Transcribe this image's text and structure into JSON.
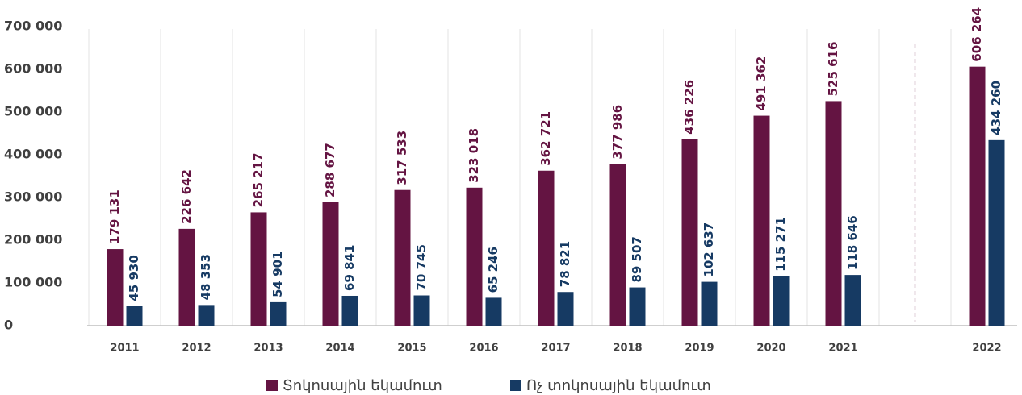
{
  "chart_data": {
    "type": "bar",
    "categories": [
      "2011",
      "2012",
      "2013",
      "2014",
      "2015",
      "2016",
      "2017",
      "2018",
      "2019",
      "2020",
      "2021",
      null,
      "2022"
    ],
    "series": [
      {
        "name": "Տոկոսային եկամուտ",
        "color": "#641442",
        "values": [
          179131,
          226642,
          265217,
          288677,
          317533,
          323018,
          362721,
          377986,
          436226,
          491362,
          525616,
          null,
          606264
        ],
        "value_labels": [
          "179 131",
          "226 642",
          "265 217",
          "288 677",
          "317 533",
          "323 018",
          "362 721",
          "377 986",
          "436 226",
          "491 362",
          "525 616",
          null,
          "606 264"
        ]
      },
      {
        "name": "Ոչ տոկոսային եկամուտ",
        "color": "#163a63",
        "values": [
          45930,
          48353,
          54901,
          69841,
          70745,
          65246,
          78821,
          89507,
          102637,
          115271,
          118646,
          null,
          434260
        ],
        "value_labels": [
          "45 930",
          "48 353",
          "54 901",
          "69 841",
          "70 745",
          "65 246",
          "78 821",
          "89 507",
          "102 637",
          "115 271",
          "118 646",
          null,
          "434 260"
        ]
      }
    ],
    "ylim": [
      0,
      700000
    ],
    "yticks": [
      0,
      {
        "value": 100000,
        "label": "100 000"
      },
      {
        "value": 200000,
        "label": "200 000"
      },
      {
        "value": 300000,
        "label": "300 000"
      },
      {
        "value": 400000,
        "label": "400 000"
      },
      {
        "value": 500000,
        "label": "500 000"
      },
      {
        "value": 600000,
        "label": "600 000"
      },
      {
        "value": 700000,
        "label": "700 000"
      }
    ],
    "legend": "bottom"
  }
}
